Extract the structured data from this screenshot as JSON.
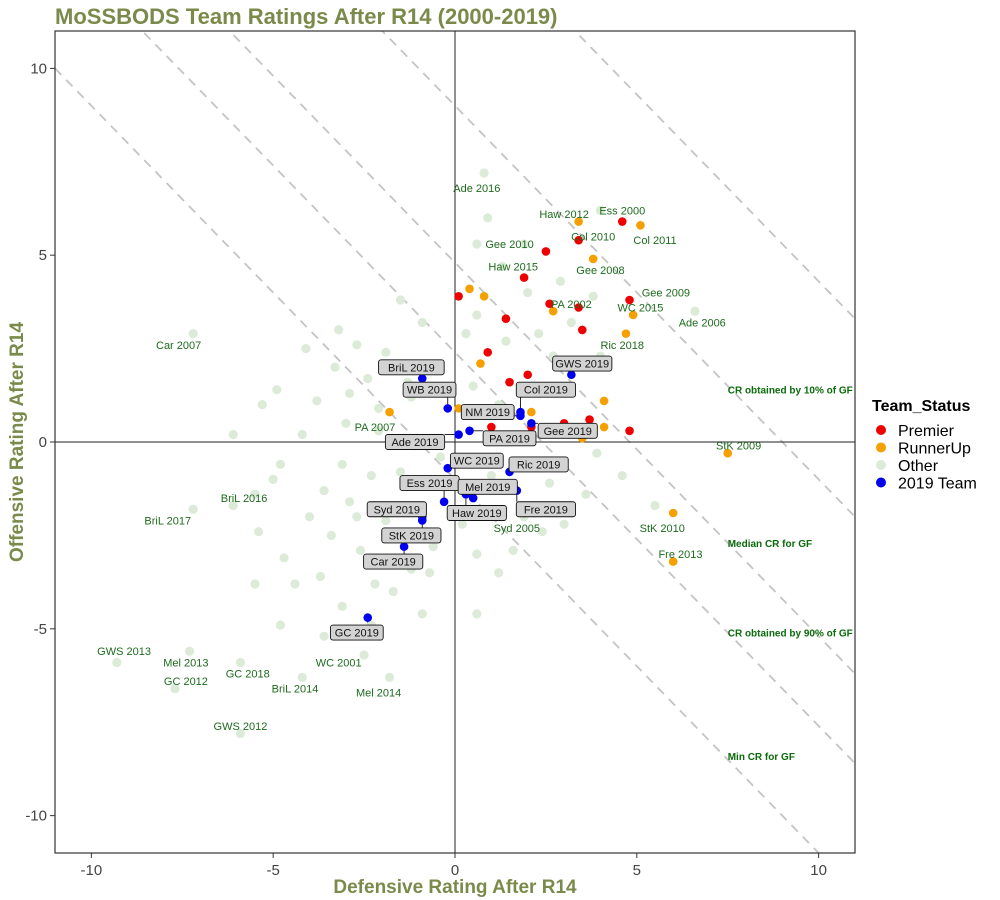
{
  "chart_data": {
    "type": "scatter",
    "title": "MoSSBODS Team Ratings After R14 (2000-2019)",
    "xlabel": "Defensive Rating After R14",
    "ylabel": "Offensive Rating After R14",
    "xlim": [
      -11,
      11
    ],
    "ylim": [
      -11,
      11
    ],
    "xticks": [
      -10,
      -5,
      0,
      5,
      10
    ],
    "yticks": [
      -10,
      -5,
      0,
      5,
      10
    ],
    "grid": false,
    "colors": {
      "Premier": "#ee0000",
      "RunnerUp": "#f5a000",
      "Other": "#dcebd8",
      "2019 Team": "#0000ee",
      "label_text": "#1e6b1e",
      "title": "#7a8a4a"
    },
    "legend": {
      "title": "Team_Status",
      "placement": "right",
      "items": [
        "Premier",
        "RunnerUp",
        "Other",
        "2019 Team"
      ]
    },
    "reference_lines": [
      {
        "label": "CR obtained by 10% of GF",
        "sum": 9,
        "label_at": [
          7.5,
          1.4
        ]
      },
      {
        "label": "Median CR for GF",
        "sum": 4.8,
        "label_at": [
          7.5,
          -2.7
        ]
      },
      {
        "label": "CR obtained by 90% of GF",
        "sum": 2.4,
        "label_at": [
          7.5,
          -5.1
        ]
      },
      {
        "label": "Min CR for GF",
        "sum": -1,
        "label_at": [
          7.5,
          -8.4
        ]
      },
      {
        "label": "",
        "sum": 14.3,
        "label_at": null
      }
    ],
    "series": [
      {
        "name": "Premier",
        "points": [
          {
            "x": 4.6,
            "y": 5.9,
            "label": "Ess 2000"
          },
          {
            "x": 3.4,
            "y": 5.4,
            "label": "Col 2010"
          },
          {
            "x": 2.5,
            "y": 5.1,
            "label": "Gee 2010"
          },
          {
            "x": 1.9,
            "y": 4.4,
            "label": "Haw 2015"
          },
          {
            "x": 2.6,
            "y": 3.7,
            "label": "PA 2002"
          },
          {
            "x": 4.8,
            "y": 3.8,
            "label": "Gee 2009"
          },
          {
            "x": 0.1,
            "y": 3.9,
            "label": ""
          },
          {
            "x": 1.4,
            "y": 3.3,
            "label": ""
          },
          {
            "x": 3.4,
            "y": 3.6,
            "label": ""
          },
          {
            "x": 3.5,
            "y": 3.0,
            "label": ""
          },
          {
            "x": 0.9,
            "y": 2.4,
            "label": ""
          },
          {
            "x": 2.0,
            "y": 1.8,
            "label": ""
          },
          {
            "x": 1.5,
            "y": 1.6,
            "label": ""
          },
          {
            "x": 1.0,
            "y": 0.4,
            "label": ""
          },
          {
            "x": 3.7,
            "y": 0.6,
            "label": ""
          },
          {
            "x": 3.0,
            "y": 0.5,
            "label": ""
          },
          {
            "x": 4.8,
            "y": 0.3,
            "label": ""
          },
          {
            "x": 2.1,
            "y": 0.4,
            "label": ""
          },
          {
            "x": 1.9,
            "y": -1.9,
            "label": ""
          }
        ]
      },
      {
        "name": "RunnerUp",
        "points": [
          {
            "x": 3.4,
            "y": 5.9,
            "label": "Haw 2012"
          },
          {
            "x": 5.1,
            "y": 5.8,
            "label": "Col 2011"
          },
          {
            "x": 3.8,
            "y": 4.9,
            "label": "Gee 2008"
          },
          {
            "x": 4.9,
            "y": 3.4,
            "label": "WC 2015"
          },
          {
            "x": 4.7,
            "y": 2.9,
            "label": "Ric 2018"
          },
          {
            "x": 7.5,
            "y": -0.3,
            "label": "StK 2009"
          },
          {
            "x": 6.0,
            "y": -1.9,
            "label": "StK 2010"
          },
          {
            "x": 6.0,
            "y": -3.2,
            "label": "Fre 2013"
          },
          {
            "x": -1.8,
            "y": 0.8,
            "label": "PA 2007"
          },
          {
            "x": 0.4,
            "y": 4.1,
            "label": ""
          },
          {
            "x": 0.8,
            "y": 3.9,
            "label": ""
          },
          {
            "x": 2.7,
            "y": 3.5,
            "label": ""
          },
          {
            "x": 0.7,
            "y": 2.1,
            "label": ""
          },
          {
            "x": 3.2,
            "y": 1.4,
            "label": ""
          },
          {
            "x": 4.1,
            "y": 1.1,
            "label": ""
          },
          {
            "x": 2.1,
            "y": 0.8,
            "label": ""
          },
          {
            "x": 0.1,
            "y": 0.9,
            "label": ""
          },
          {
            "x": 4.1,
            "y": 0.4,
            "label": ""
          },
          {
            "x": 3.5,
            "y": 0.1,
            "label": ""
          }
        ]
      },
      {
        "name": "Other",
        "points": [
          {
            "x": 0.8,
            "y": 7.2,
            "label": "Ade 2016"
          },
          {
            "x": -7.2,
            "y": 2.9,
            "label": "Car 2007"
          },
          {
            "x": 6.6,
            "y": 3.5,
            "label": "Ade 2006"
          },
          {
            "x": -6.1,
            "y": -1.7,
            "label": "BriL 2016"
          },
          {
            "x": -7.2,
            "y": -1.8,
            "label": "BriL 2017"
          },
          {
            "x": 1.9,
            "y": -2.0,
            "label": "Syd 2005"
          },
          {
            "x": -9.3,
            "y": -5.9,
            "label": "GWS 2013"
          },
          {
            "x": -7.3,
            "y": -5.6,
            "label": "Mel 2013"
          },
          {
            "x": -5.9,
            "y": -5.9,
            "label": "GC 2018"
          },
          {
            "x": -2.5,
            "y": -5.7,
            "label": "WC 2001"
          },
          {
            "x": -7.7,
            "y": -6.6,
            "label": "GC 2012"
          },
          {
            "x": -4.2,
            "y": -6.3,
            "label": "BriL 2014"
          },
          {
            "x": -1.8,
            "y": -6.3,
            "label": "Mel 2014"
          },
          {
            "x": -5.9,
            "y": -7.8,
            "label": "GWS 2012"
          },
          {
            "x": -1.5,
            "y": 3.8,
            "label": ""
          },
          {
            "x": -0.9,
            "y": 3.2,
            "label": ""
          },
          {
            "x": -2.7,
            "y": 2.6,
            "label": ""
          },
          {
            "x": -1.9,
            "y": 2.4,
            "label": ""
          },
          {
            "x": -3.3,
            "y": 2.0,
            "label": ""
          },
          {
            "x": -2.4,
            "y": 1.7,
            "label": ""
          },
          {
            "x": -4.9,
            "y": 1.4,
            "label": ""
          },
          {
            "x": -5.3,
            "y": 1.0,
            "label": ""
          },
          {
            "x": -3.8,
            "y": 1.1,
            "label": ""
          },
          {
            "x": -2.9,
            "y": 1.3,
            "label": ""
          },
          {
            "x": -1.2,
            "y": 1.2,
            "label": ""
          },
          {
            "x": -3.0,
            "y": 0.5,
            "label": ""
          },
          {
            "x": -2.1,
            "y": 0.3,
            "label": ""
          },
          {
            "x": -4.2,
            "y": 0.2,
            "label": ""
          },
          {
            "x": -1.1,
            "y": -0.1,
            "label": ""
          },
          {
            "x": -3.1,
            "y": -0.6,
            "label": ""
          },
          {
            "x": -4.8,
            "y": -0.6,
            "label": ""
          },
          {
            "x": -2.3,
            "y": -0.9,
            "label": ""
          },
          {
            "x": -3.6,
            "y": -1.3,
            "label": ""
          },
          {
            "x": -5.5,
            "y": -1.4,
            "label": ""
          },
          {
            "x": -2.9,
            "y": -1.6,
            "label": ""
          },
          {
            "x": -4.0,
            "y": -2.0,
            "label": ""
          },
          {
            "x": -1.9,
            "y": -2.1,
            "label": ""
          },
          {
            "x": -3.4,
            "y": -2.5,
            "label": ""
          },
          {
            "x": -5.4,
            "y": -2.4,
            "label": ""
          },
          {
            "x": -2.6,
            "y": -2.9,
            "label": ""
          },
          {
            "x": -4.7,
            "y": -3.1,
            "label": ""
          },
          {
            "x": -3.7,
            "y": -3.6,
            "label": ""
          },
          {
            "x": -5.5,
            "y": -3.8,
            "label": ""
          },
          {
            "x": -2.2,
            "y": -3.8,
            "label": ""
          },
          {
            "x": -4.4,
            "y": -3.8,
            "label": ""
          },
          {
            "x": -3.1,
            "y": -4.4,
            "label": ""
          },
          {
            "x": -4.8,
            "y": -4.9,
            "label": ""
          },
          {
            "x": -3.6,
            "y": -5.2,
            "label": ""
          },
          {
            "x": -1.7,
            "y": -4.0,
            "label": ""
          },
          {
            "x": -0.7,
            "y": -3.5,
            "label": ""
          },
          {
            "x": 0.6,
            "y": -3.0,
            "label": ""
          },
          {
            "x": 0.6,
            "y": -4.6,
            "label": ""
          },
          {
            "x": 1.6,
            "y": -2.9,
            "label": ""
          },
          {
            "x": 2.4,
            "y": -2.4,
            "label": ""
          },
          {
            "x": 3.0,
            "y": -2.2,
            "label": ""
          },
          {
            "x": 3.6,
            "y": -1.4,
            "label": ""
          },
          {
            "x": 5.5,
            "y": -1.7,
            "label": ""
          },
          {
            "x": 4.6,
            "y": -0.9,
            "label": ""
          },
          {
            "x": 2.9,
            "y": -0.6,
            "label": ""
          },
          {
            "x": 1.0,
            "y": -0.9,
            "label": ""
          },
          {
            "x": 0.3,
            "y": -1.2,
            "label": ""
          },
          {
            "x": -0.4,
            "y": -0.4,
            "label": ""
          },
          {
            "x": 0.5,
            "y": 1.5,
            "label": ""
          },
          {
            "x": 1.2,
            "y": 1.0,
            "label": ""
          },
          {
            "x": 0.3,
            "y": 2.9,
            "label": ""
          },
          {
            "x": 0.6,
            "y": 3.4,
            "label": ""
          },
          {
            "x": 1.4,
            "y": 2.7,
            "label": ""
          },
          {
            "x": 2.3,
            "y": 2.9,
            "label": ""
          },
          {
            "x": 2.0,
            "y": 4.0,
            "label": ""
          },
          {
            "x": 1.3,
            "y": 4.7,
            "label": ""
          },
          {
            "x": 1.9,
            "y": 5.3,
            "label": ""
          },
          {
            "x": 0.6,
            "y": 5.3,
            "label": ""
          },
          {
            "x": 2.9,
            "y": 4.3,
            "label": ""
          },
          {
            "x": 3.2,
            "y": 3.2,
            "label": ""
          },
          {
            "x": 4.0,
            "y": 2.3,
            "label": ""
          },
          {
            "x": 2.7,
            "y": 2.3,
            "label": ""
          },
          {
            "x": 3.8,
            "y": 3.9,
            "label": ""
          },
          {
            "x": -0.5,
            "y": 2.0,
            "label": ""
          },
          {
            "x": -1.3,
            "y": 1.6,
            "label": ""
          },
          {
            "x": -2.1,
            "y": 0.9,
            "label": ""
          },
          {
            "x": -1.5,
            "y": -0.8,
            "label": ""
          },
          {
            "x": -0.6,
            "y": -2.8,
            "label": ""
          },
          {
            "x": -1.2,
            "y": -3.4,
            "label": ""
          },
          {
            "x": -2.7,
            "y": -2.0,
            "label": ""
          },
          {
            "x": -5.0,
            "y": -1.0,
            "label": ""
          },
          {
            "x": -6.1,
            "y": 0.2,
            "label": ""
          },
          {
            "x": -4.1,
            "y": 2.5,
            "label": ""
          },
          {
            "x": -3.2,
            "y": 3.0,
            "label": ""
          },
          {
            "x": -2.3,
            "y": -4.9,
            "label": ""
          },
          {
            "x": -0.9,
            "y": -4.6,
            "label": ""
          },
          {
            "x": 0.2,
            "y": -2.2,
            "label": ""
          },
          {
            "x": 1.2,
            "y": -3.5,
            "label": ""
          },
          {
            "x": 2.6,
            "y": -1.1,
            "label": ""
          },
          {
            "x": 3.9,
            "y": -0.3,
            "label": ""
          },
          {
            "x": 0.9,
            "y": 6.0,
            "label": ""
          },
          {
            "x": 4.0,
            "y": 6.2,
            "label": ""
          }
        ]
      },
      {
        "name": "2019 Team",
        "points": [
          {
            "x": 3.2,
            "y": 1.8,
            "label": "GWS 2019"
          },
          {
            "x": -0.9,
            "y": 1.7,
            "label": "BriL 2019"
          },
          {
            "x": -0.2,
            "y": 0.9,
            "label": "WB 2019"
          },
          {
            "x": 1.8,
            "y": 0.8,
            "label": "Col 2019"
          },
          {
            "x": 1.8,
            "y": 0.7,
            "label": "NM 2019"
          },
          {
            "x": 2.1,
            "y": 0.5,
            "label": "Gee 2019"
          },
          {
            "x": 0.4,
            "y": 0.3,
            "label": "PA 2019"
          },
          {
            "x": 0.1,
            "y": 0.2,
            "label": "Ade 2019"
          },
          {
            "x": -0.2,
            "y": -0.7,
            "label": "WC 2019"
          },
          {
            "x": 1.5,
            "y": -0.8,
            "label": "Ric 2019"
          },
          {
            "x": 1.7,
            "y": -1.3,
            "label": "Fre 2019"
          },
          {
            "x": -0.3,
            "y": -1.6,
            "label": "Ess 2019"
          },
          {
            "x": 0.5,
            "y": -1.5,
            "label": "Mel 2019"
          },
          {
            "x": -0.9,
            "y": -2.1,
            "label": "Syd 2019"
          },
          {
            "x": 0.3,
            "y": -1.4,
            "label": "Haw 2019"
          },
          {
            "x": -0.9,
            "y": -2.0,
            "label": "StK 2019"
          },
          {
            "x": -1.4,
            "y": -2.8,
            "label": "Car 2019"
          },
          {
            "x": -2.4,
            "y": -4.7,
            "label": "GC 2019"
          }
        ]
      }
    ]
  },
  "label_layout": {
    "Ess 2000": [
      4.6,
      6.2
    ],
    "Col 2010": [
      3.8,
      5.5
    ],
    "Gee 2010": [
      1.5,
      5.3
    ],
    "Haw 2015": [
      1.6,
      4.7
    ],
    "PA 2002": [
      3.2,
      3.7
    ],
    "Gee 2009": [
      5.8,
      4.0
    ],
    "Haw 2012": [
      3.0,
      6.1
    ],
    "Col 2011": [
      5.5,
      5.4
    ],
    "Gee 2008": [
      4.0,
      4.6
    ],
    "WC 2015": [
      5.1,
      3.6
    ],
    "Ric 2018": [
      4.6,
      2.6
    ],
    "StK 2009": [
      7.8,
      -0.1
    ],
    "StK 2010": [
      5.7,
      -2.3
    ],
    "Fre 2013": [
      6.2,
      -3.0
    ],
    "PA 2007": [
      -2.2,
      0.4
    ],
    "Ade 2016": [
      0.6,
      6.8
    ],
    "Car 2007": [
      -7.6,
      2.6
    ],
    "Ade 2006": [
      6.8,
      3.2
    ],
    "BriL 2016": [
      -5.8,
      -1.5
    ],
    "BriL 2017": [
      -7.9,
      -2.1
    ],
    "Syd 2005": [
      1.7,
      -2.3
    ],
    "GWS 2013": [
      -9.1,
      -5.6
    ],
    "Mel 2013": [
      -7.4,
      -5.9
    ],
    "GC 2018": [
      -5.7,
      -6.2
    ],
    "WC 2001": [
      -3.2,
      -5.9
    ],
    "GC 2012": [
      -7.4,
      -6.4
    ],
    "BriL 2014": [
      -4.4,
      -6.6
    ],
    "Mel 2014": [
      -2.1,
      -6.7
    ],
    "GWS 2012": [
      -5.9,
      -7.6
    ],
    "GWS 2019": [
      3.5,
      2.1
    ],
    "BriL 2019": [
      -1.2,
      2.0
    ],
    "WB 2019": [
      -0.7,
      1.4
    ],
    "Col 2019": [
      2.5,
      1.4
    ],
    "NM 2019": [
      0.9,
      0.8
    ],
    "Gee 2019": [
      3.1,
      0.3
    ],
    "PA 2019": [
      1.5,
      0.1
    ],
    "Ade 2019": [
      -1.1,
      0.0
    ],
    "WC 2019": [
      0.6,
      -0.5
    ],
    "Ric 2019": [
      2.3,
      -0.6
    ],
    "Fre 2019": [
      2.5,
      -1.8
    ],
    "Ess 2019": [
      -0.7,
      -1.1
    ],
    "Mel 2019": [
      0.9,
      -1.2
    ],
    "Syd 2019": [
      -1.6,
      -1.8
    ],
    "Haw 2019": [
      0.6,
      -1.9
    ],
    "StK 2019": [
      -1.2,
      -2.5
    ],
    "Car 2019": [
      -1.7,
      -3.2
    ],
    "GC 2019": [
      -2.7,
      -5.1
    ]
  }
}
